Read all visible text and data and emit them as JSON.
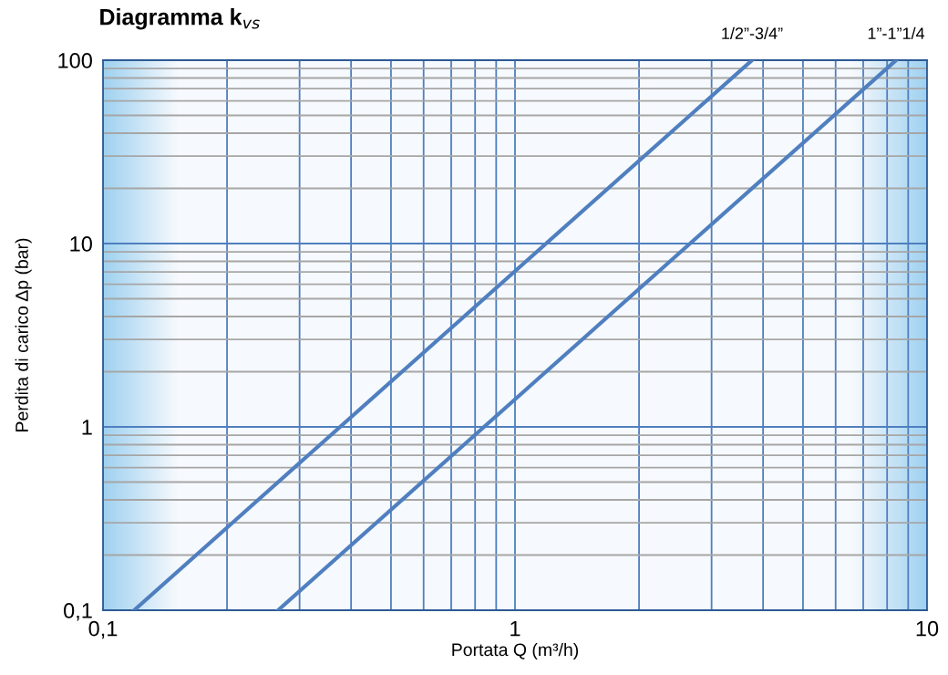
{
  "chart_data": {
    "type": "line",
    "title": "Diagramma k$_{vs}$",
    "xlabel": "Portata Q (m³/h)",
    "ylabel": "Perdita di carico Δp (bar)",
    "log": "xy",
    "grid": true,
    "legend": false,
    "marker": "none",
    "line_style": "solid",
    "xlim": [
      0.1,
      10
    ],
    "ylim": [
      0.1,
      100
    ],
    "xticks": [
      {
        "value": 0.1,
        "label": "0,1"
      },
      {
        "value": 0.2,
        "label": null
      },
      {
        "value": 0.3,
        "label": null
      },
      {
        "value": 0.4,
        "label": null
      },
      {
        "value": 0.5,
        "label": null
      },
      {
        "value": 0.6,
        "label": null
      },
      {
        "value": 0.7,
        "label": null
      },
      {
        "value": 0.8,
        "label": null
      },
      {
        "value": 0.9,
        "label": null
      },
      1,
      {
        "value": 2,
        "label": null
      },
      {
        "value": 3,
        "label": null
      },
      {
        "value": 4,
        "label": null
      },
      {
        "value": 5,
        "label": null
      },
      {
        "value": 6,
        "label": null
      },
      {
        "value": 7,
        "label": null
      },
      {
        "value": 8,
        "label": null
      },
      {
        "value": 9,
        "label": null
      },
      10
    ],
    "yticks": [
      {
        "value": 0.1,
        "label": "0,1"
      },
      {
        "value": 0.2,
        "label": null
      },
      {
        "value": 0.3,
        "label": null
      },
      {
        "value": 0.4,
        "label": null
      },
      {
        "value": 0.5,
        "label": null
      },
      {
        "value": 0.6,
        "label": null
      },
      {
        "value": 0.7,
        "label": null
      },
      {
        "value": 0.8,
        "label": null
      },
      {
        "value": 0.9,
        "label": null
      },
      1,
      {
        "value": 2,
        "label": null
      },
      {
        "value": 3,
        "label": null
      },
      {
        "value": 4,
        "label": null
      },
      {
        "value": 5,
        "label": null
      },
      {
        "value": 6,
        "label": null
      },
      {
        "value": 7,
        "label": null
      },
      {
        "value": 8,
        "label": null
      },
      {
        "value": 9,
        "label": null
      },
      10,
      {
        "value": 20,
        "label": null
      },
      {
        "value": 30,
        "label": null
      },
      {
        "value": 40,
        "label": null
      },
      {
        "value": 50,
        "label": null
      },
      {
        "value": 60,
        "label": null
      },
      {
        "value": 70,
        "label": null
      },
      {
        "value": 80,
        "label": null
      },
      {
        "value": 90,
        "label": null
      },
      100
    ],
    "series": [
      {
        "name": "1/2”-3/4”",
        "color": "#4f7fbf",
        "x": [
          0.119,
          3.76
        ],
        "values": [
          0.1,
          100
        ]
      },
      {
        "name": "1”-1”1/4",
        "color": "#4f7fbf",
        "x": [
          0.266,
          8.41
        ],
        "values": [
          0.1,
          100
        ]
      }
    ]
  }
}
